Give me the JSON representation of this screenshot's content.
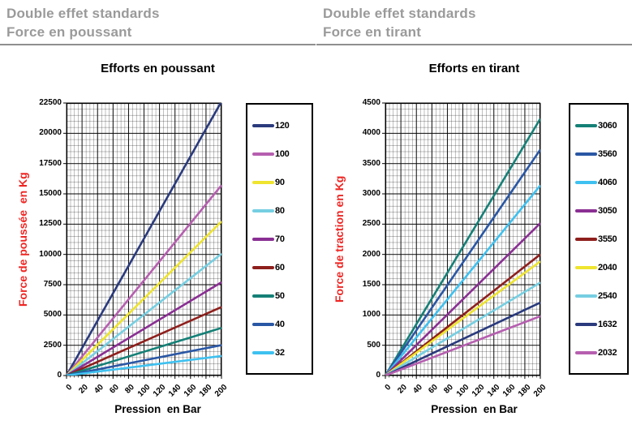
{
  "panels": [
    {
      "header_line1": "Double effet standards",
      "header_line2": "Force en poussant",
      "subtitle": "Efforts en poussant"
    },
    {
      "header_line1": "Double effet standards",
      "header_line2": "Force en tirant",
      "subtitle": "Efforts en tirant"
    }
  ],
  "colors": {
    "header_gray": "#9a9a9a",
    "underline_gray": "#8f8f8f",
    "axis_label_red": "#ee2724",
    "axis_black": "#000000"
  },
  "chart_data": [
    {
      "type": "line",
      "title": "Efforts en poussant",
      "xlabel": "Pression  en Bar",
      "ylabel": "Force de poussée  en Kg",
      "x_range": [
        0,
        200
      ],
      "y_range": [
        0,
        22500
      ],
      "x_ticks": [
        0,
        20,
        40,
        60,
        80,
        100,
        120,
        140,
        160,
        180,
        200
      ],
      "y_ticks": [
        0,
        2500,
        5000,
        7500,
        10000,
        12500,
        15000,
        17500,
        20000,
        22500
      ],
      "x_minor": 5,
      "y_minor": 500,
      "grid": true,
      "legend_position": "right",
      "series": [
        {
          "name": "120",
          "color": "#2a3a7d",
          "x": [
            0,
            200
          ],
          "force_kg": [
            0,
            22620
          ]
        },
        {
          "name": "100",
          "color": "#b65fb0",
          "x": [
            0,
            200
          ],
          "force_kg": [
            0,
            15710
          ]
        },
        {
          "name": "90",
          "color": "#efe42f",
          "x": [
            0,
            200
          ],
          "force_kg": [
            0,
            12720
          ]
        },
        {
          "name": "80",
          "color": "#76cfe2",
          "x": [
            0,
            200
          ],
          "force_kg": [
            0,
            10050
          ]
        },
        {
          "name": "70",
          "color": "#8a2f93",
          "x": [
            0,
            200
          ],
          "force_kg": [
            0,
            7700
          ]
        },
        {
          "name": "60",
          "color": "#8e1f1c",
          "x": [
            0,
            200
          ],
          "force_kg": [
            0,
            5655
          ]
        },
        {
          "name": "50",
          "color": "#158077",
          "x": [
            0,
            200
          ],
          "force_kg": [
            0,
            3930
          ]
        },
        {
          "name": "40",
          "color": "#2a57a5",
          "x": [
            0,
            200
          ],
          "force_kg": [
            0,
            2510
          ]
        },
        {
          "name": "32",
          "color": "#3ec1f0",
          "x": [
            0,
            200
          ],
          "force_kg": [
            0,
            1610
          ]
        }
      ]
    },
    {
      "type": "line",
      "title": "Efforts en tirant",
      "xlabel": "Pression  en Bar",
      "ylabel": "Force de traction en Kg",
      "x_range": [
        0,
        200
      ],
      "y_range": [
        0,
        4500
      ],
      "x_ticks": [
        0,
        20,
        40,
        60,
        80,
        100,
        120,
        140,
        160,
        180,
        200
      ],
      "y_ticks": [
        0,
        500,
        1000,
        1500,
        2000,
        2500,
        3000,
        3500,
        4000,
        4500
      ],
      "x_minor": 5,
      "y_minor": 100,
      "grid": true,
      "legend_position": "right",
      "series": [
        {
          "name": "3060",
          "color": "#158077",
          "x": [
            0,
            200
          ],
          "force_kg": [
            0,
            4240
          ]
        },
        {
          "name": "3560",
          "color": "#2a57a5",
          "x": [
            0,
            200
          ],
          "force_kg": [
            0,
            3730
          ]
        },
        {
          "name": "4060",
          "color": "#3ec1f0",
          "x": [
            0,
            200
          ],
          "force_kg": [
            0,
            3140
          ]
        },
        {
          "name": "3050",
          "color": "#8a2f93",
          "x": [
            0,
            200
          ],
          "force_kg": [
            0,
            2515
          ]
        },
        {
          "name": "3550",
          "color": "#8e1f1c",
          "x": [
            0,
            200
          ],
          "force_kg": [
            0,
            2000
          ]
        },
        {
          "name": "2040",
          "color": "#efe42f",
          "x": [
            0,
            200
          ],
          "force_kg": [
            0,
            1885
          ]
        },
        {
          "name": "2540",
          "color": "#76cfe2",
          "x": [
            0,
            200
          ],
          "force_kg": [
            0,
            1535
          ]
        },
        {
          "name": "1632",
          "color": "#2a3a7d",
          "x": [
            0,
            200
          ],
          "force_kg": [
            0,
            1205
          ]
        },
        {
          "name": "2032",
          "color": "#b65fb0",
          "x": [
            0,
            200
          ],
          "force_kg": [
            0,
            980
          ]
        }
      ]
    }
  ]
}
